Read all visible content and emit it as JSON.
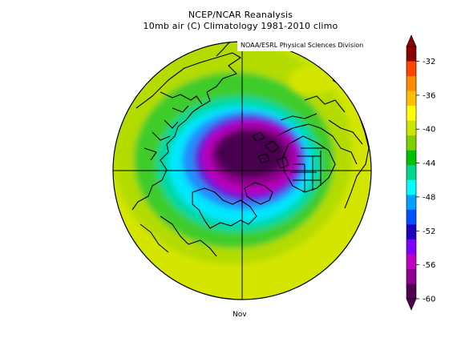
{
  "title_line1": "NCEP/NCAR Reanalysis",
  "title_line2": "10mb air (C) Climatology 1981-2010 climo",
  "credit": "NOAA/ESRL Physical Sciences Division",
  "month_label": "Nov",
  "colorbar": {
    "tick_labels": [
      "-32",
      "-36",
      "-40",
      "-44",
      "-48",
      "-52",
      "-56",
      "-60"
    ],
    "colors": [
      "#8b0000",
      "#ff4500",
      "#ff8c00",
      "#ffc000",
      "#ffff00",
      "#c8e600",
      "#80d000",
      "#00c000",
      "#00d890",
      "#00ffff",
      "#00a0ff",
      "#0050ff",
      "#2000c0",
      "#8000ff",
      "#c000c0",
      "#900090",
      "#500050"
    ]
  },
  "map": {
    "projection": "north-polar-stereographic",
    "colors": {
      "outer_yellow": "#d4e600",
      "yellow_green": "#b4dc00",
      "green": "#3ccc2a",
      "teal": "#00d8a0",
      "cyan": "#00e8ff",
      "blue": "#1e90ff",
      "indigo": "#5a18d8",
      "magenta": "#c000c0",
      "purple": "#8a008a",
      "dark_purple": "#4a0050",
      "coastline": "#000000"
    }
  }
}
